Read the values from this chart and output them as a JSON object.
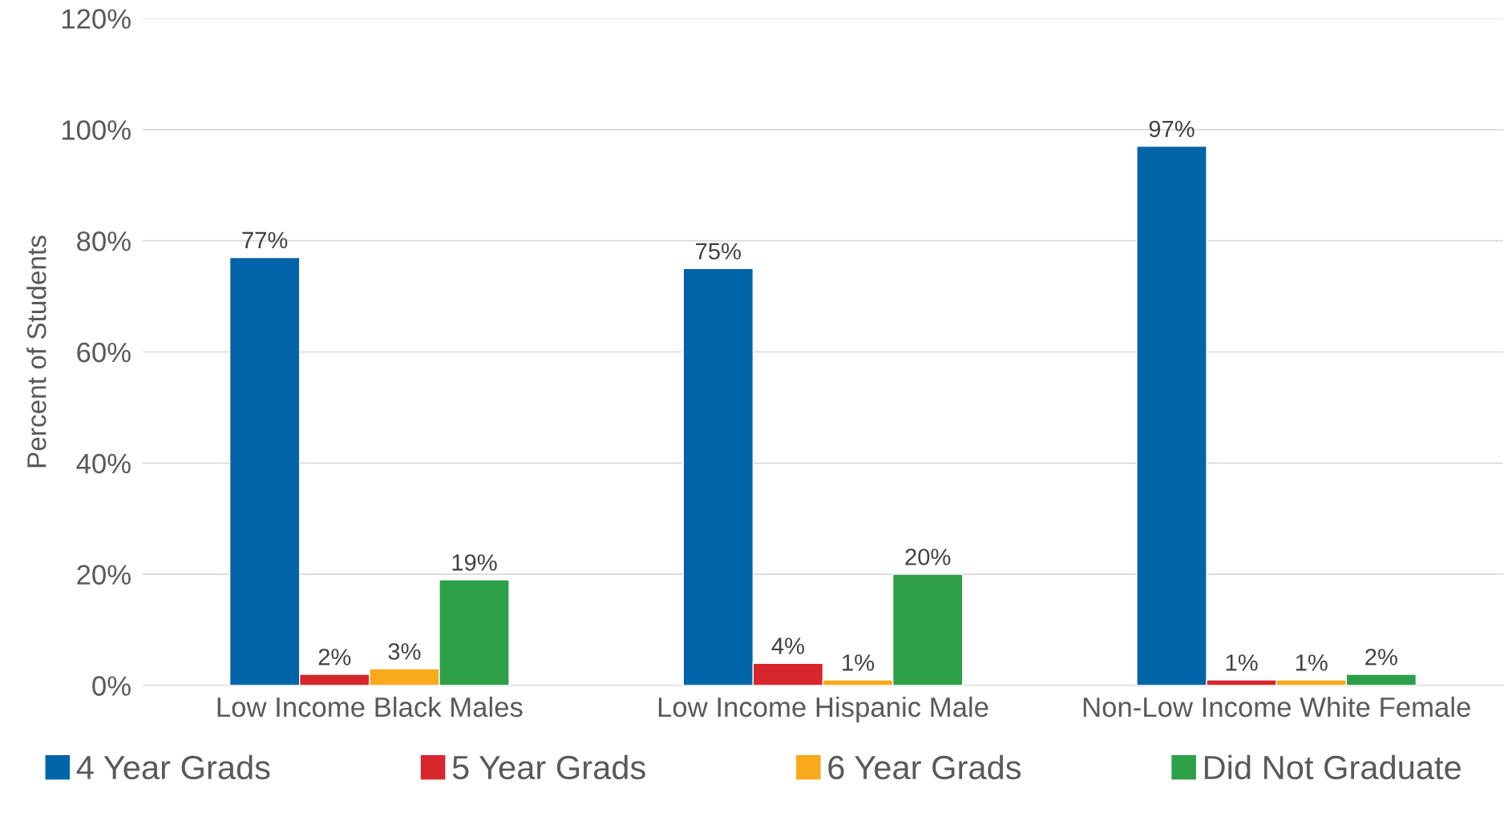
{
  "chart_data": {
    "type": "bar",
    "ylabel": "Percent of Students",
    "categories": [
      "Low Income Black Males",
      "Low Income Hispanic Male",
      "Non-Low Income White Female"
    ],
    "series": [
      {
        "name": "4 Year Grads",
        "color": "#0064a8",
        "values": [
          77,
          75,
          97
        ],
        "value_labels": [
          "77%",
          "75%",
          "97%"
        ]
      },
      {
        "name": "5 Year Grads",
        "color": "#d7262c",
        "values": [
          2,
          4,
          1
        ],
        "value_labels": [
          "2%",
          "4%",
          "1%"
        ]
      },
      {
        "name": "6 Year Grads",
        "color": "#f8a91c",
        "values": [
          3,
          1,
          1
        ],
        "value_labels": [
          "3%",
          "1%",
          "1%"
        ]
      },
      {
        "name": "Did Not Graduate",
        "color": "#2e9f49",
        "values": [
          19,
          20,
          2
        ],
        "value_labels": [
          "19%",
          "20%",
          "2%"
        ]
      }
    ],
    "ylim": [
      0,
      120
    ],
    "yticks": [
      {
        "value": 0,
        "label": "0%"
      },
      {
        "value": 20,
        "label": "20%"
      },
      {
        "value": 40,
        "label": "40%"
      },
      {
        "value": 60,
        "label": "60%"
      },
      {
        "value": 80,
        "label": "80%"
      },
      {
        "value": 100,
        "label": "100%"
      },
      {
        "value": 120,
        "label": "120%"
      }
    ],
    "grid": "y",
    "legend": "bottom"
  }
}
